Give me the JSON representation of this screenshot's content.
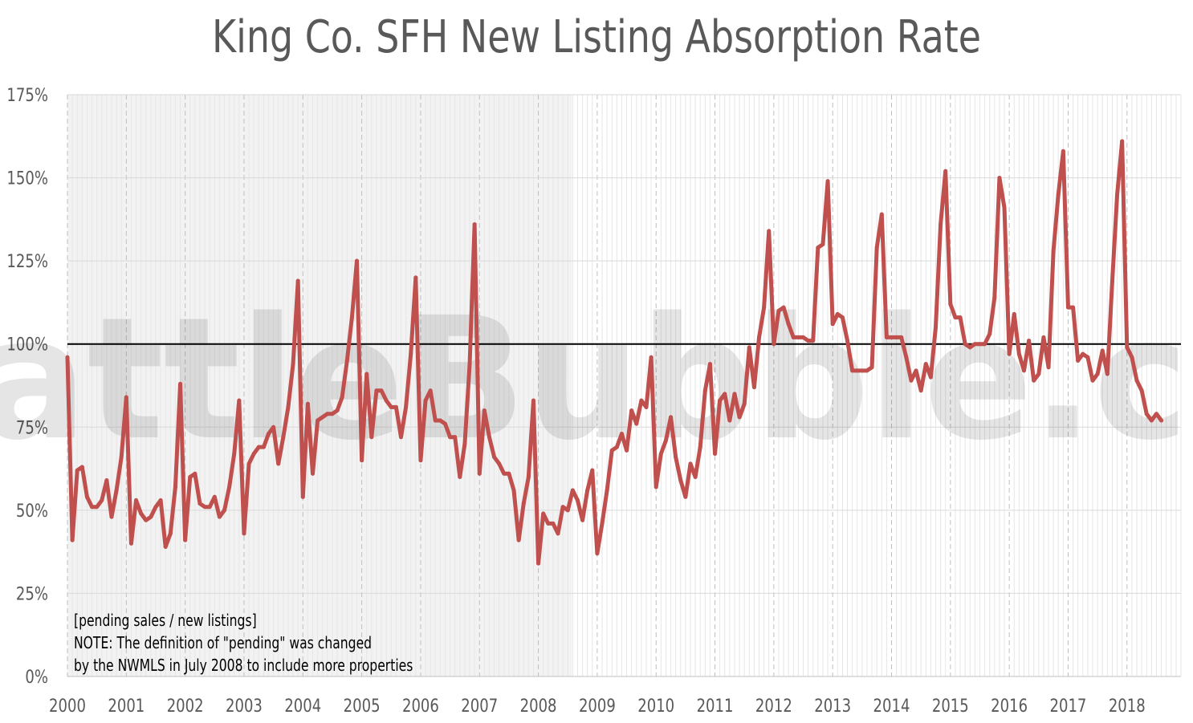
{
  "chart_data": {
    "type": "line",
    "title": "King Co. SFH New Listing Absorption Rate",
    "watermark": "SeattleBubble.com",
    "ylim": [
      0,
      175
    ],
    "y_ticks": [
      0,
      25,
      50,
      75,
      100,
      125,
      150,
      175
    ],
    "y_tick_labels": [
      "0%",
      "25%",
      "50%",
      "75%",
      "100%",
      "125%",
      "150%",
      "175%"
    ],
    "x_tick_labels": [
      "2000",
      "2001",
      "2002",
      "2003",
      "2004",
      "2005",
      "2006",
      "2007",
      "2008",
      "2009",
      "2010",
      "2011",
      "2012",
      "2013",
      "2014",
      "2015",
      "2016",
      "2017",
      "2018"
    ],
    "reference_line": 100,
    "shaded_until": "Jul 2008",
    "annotation_lines": [
      "[pending sales / new listings]",
      "NOTE: The definition of \"pending\" was changed",
      "by the NWMLS in July 2008 to include more properties"
    ],
    "colors": {
      "line": "#c0504d",
      "shade": "#f2f2f2",
      "reference": "#000000",
      "grid": "#d9d9d9",
      "title": "#595959",
      "axis_text": "#595959"
    },
    "series": [
      {
        "start": "Jan 2000",
        "frequency": "monthly",
        "values": [
          96,
          41,
          62,
          63,
          54,
          51,
          51,
          53,
          59,
          48,
          56,
          66,
          84,
          40,
          53,
          49,
          47,
          48,
          51,
          53,
          39,
          43,
          57,
          88,
          41,
          60,
          61,
          52,
          51,
          51,
          54,
          48,
          50,
          57,
          67,
          83,
          43,
          64,
          67,
          69,
          69,
          73,
          75,
          64,
          72,
          81,
          94,
          119,
          54,
          82,
          61,
          77,
          78,
          79,
          79,
          80,
          84,
          95,
          108,
          125,
          65,
          91,
          72,
          86,
          86,
          83,
          81,
          81,
          72,
          81,
          97,
          120,
          65,
          83,
          86,
          77,
          77,
          76,
          72,
          72,
          60,
          70,
          94,
          136,
          61,
          80,
          72,
          66,
          64,
          61,
          61,
          56,
          41,
          52,
          60,
          83,
          34,
          49,
          46,
          46,
          43,
          51,
          50,
          56,
          53,
          47,
          56,
          62,
          37,
          46,
          56,
          68,
          69,
          73,
          68,
          80,
          76,
          83,
          81,
          96,
          57,
          67,
          71,
          78,
          66,
          59,
          54,
          64,
          60,
          69,
          86,
          94,
          67,
          83,
          85,
          77,
          85,
          78,
          82,
          99,
          87,
          102,
          111,
          134,
          100,
          110,
          111,
          106,
          102,
          102,
          102,
          101,
          101,
          129,
          130,
          149,
          106,
          109,
          108,
          101,
          92,
          92,
          92,
          92,
          93,
          129,
          139,
          102,
          102,
          102,
          102,
          96,
          89,
          92,
          86,
          94,
          90,
          105,
          136,
          152,
          112,
          108,
          108,
          100,
          99,
          100,
          100,
          100,
          103,
          114,
          150,
          141,
          97,
          109,
          97,
          92,
          101,
          89,
          91,
          102,
          93,
          128,
          145,
          158,
          111,
          111,
          95,
          97,
          96,
          89,
          91,
          98,
          91,
          119,
          145,
          161,
          99,
          96,
          89,
          86,
          79,
          77,
          79,
          77
        ]
      }
    ]
  }
}
